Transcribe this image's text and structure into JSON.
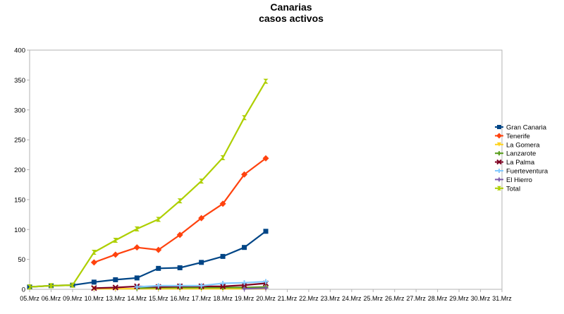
{
  "chart_data": {
    "type": "line",
    "title": "Canarias",
    "subtitle": "casos activos",
    "xlabel": "",
    "ylabel": "",
    "ylim": [
      0,
      400
    ],
    "yticks": [
      0,
      50,
      100,
      150,
      200,
      250,
      300,
      350,
      400
    ],
    "grid": false,
    "legend_position": "right",
    "categories": [
      "05.Mrz",
      "06.Mrz",
      "09.Mrz",
      "10.Mrz",
      "13.Mrz",
      "14.Mrz",
      "15.Mrz",
      "16.Mrz",
      "17.Mrz",
      "18.Mrz",
      "19.Mrz",
      "20.Mrz",
      "21.Mrz",
      "22.Mrz",
      "23.Mrz",
      "24.Mrz",
      "25.Mrz",
      "26.Mrz",
      "27.Mrz",
      "28.Mrz",
      "29.Mrz",
      "30.Mrz",
      "31.Mrz"
    ],
    "series": [
      {
        "name": "Gran Canaria",
        "color": "#004586",
        "marker": "square",
        "values": [
          4,
          6,
          7,
          12,
          16,
          19,
          35,
          36,
          45,
          55,
          70,
          97,
          null,
          null,
          null,
          null,
          null,
          null,
          null,
          null,
          null,
          null,
          null
        ]
      },
      {
        "name": "Tenerife",
        "color": "#ff420e",
        "marker": "diamond",
        "values": [
          null,
          null,
          null,
          45,
          58,
          70,
          66,
          91,
          119,
          143,
          192,
          219,
          null,
          null,
          null,
          null,
          null,
          null,
          null,
          null,
          null,
          null,
          null
        ]
      },
      {
        "name": "La Gomera",
        "color": "#ffd320",
        "marker": "triangle-down",
        "values": [
          null,
          null,
          null,
          1,
          1,
          1,
          1,
          1,
          1,
          1,
          1,
          1,
          null,
          null,
          null,
          null,
          null,
          null,
          null,
          null,
          null,
          null,
          null
        ]
      },
      {
        "name": "Lanzarote",
        "color": "#579d1c",
        "marker": "plus",
        "values": [
          null,
          null,
          null,
          null,
          null,
          2,
          3,
          3,
          3,
          3,
          3,
          4,
          null,
          null,
          null,
          null,
          null,
          null,
          null,
          null,
          null,
          null,
          null
        ]
      },
      {
        "name": "La Palma",
        "color": "#7e0021",
        "marker": "cross",
        "values": [
          null,
          null,
          null,
          2,
          3,
          5,
          4,
          5,
          5,
          5,
          7,
          10,
          null,
          null,
          null,
          null,
          null,
          null,
          null,
          null,
          null,
          null,
          null
        ]
      },
      {
        "name": "Fuerteventura",
        "color": "#83caff",
        "marker": "plus",
        "values": [
          null,
          null,
          null,
          null,
          null,
          4,
          6,
          6,
          6,
          10,
          11,
          13,
          null,
          null,
          null,
          null,
          null,
          null,
          null,
          null,
          null,
          null,
          null
        ]
      },
      {
        "name": "El Hierro",
        "color": "#7e5bab",
        "marker": "star",
        "values": [
          null,
          null,
          null,
          null,
          null,
          null,
          null,
          null,
          null,
          null,
          1,
          2,
          null,
          null,
          null,
          null,
          null,
          null,
          null,
          null,
          null,
          null,
          null
        ]
      },
      {
        "name": "Total",
        "color": "#aecf00",
        "marker": "hourglass",
        "values": [
          4,
          6,
          7,
          62,
          82,
          101,
          117,
          148,
          181,
          220,
          287,
          348,
          null,
          null,
          null,
          null,
          null,
          null,
          null,
          null,
          null,
          null,
          null
        ]
      }
    ]
  }
}
